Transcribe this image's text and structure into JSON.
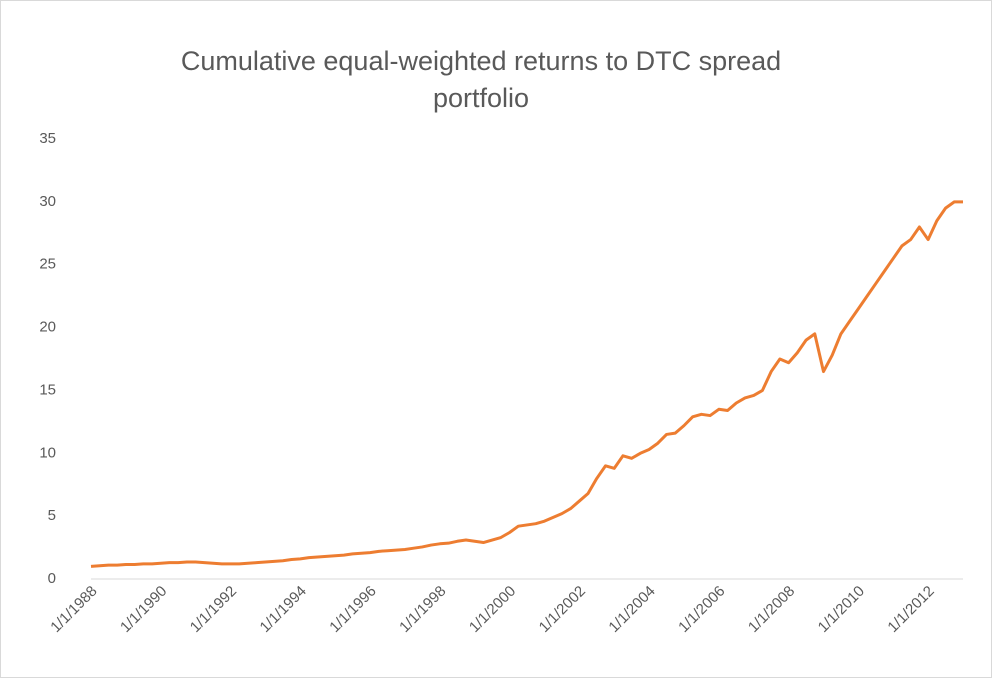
{
  "chart_data": {
    "type": "line",
    "title": "Cumulative equal-weighted returns to DTC spread portfolio",
    "x": [
      "1/1/1988",
      "4/1/1988",
      "7/1/1988",
      "10/1/1988",
      "1/1/1989",
      "4/1/1989",
      "7/1/1989",
      "10/1/1989",
      "1/1/1990",
      "4/1/1990",
      "7/1/1990",
      "10/1/1990",
      "1/1/1991",
      "4/1/1991",
      "7/1/1991",
      "10/1/1991",
      "1/1/1992",
      "4/1/1992",
      "7/1/1992",
      "10/1/1992",
      "1/1/1993",
      "4/1/1993",
      "7/1/1993",
      "10/1/1993",
      "1/1/1994",
      "4/1/1994",
      "7/1/1994",
      "10/1/1994",
      "1/1/1995",
      "4/1/1995",
      "7/1/1995",
      "10/1/1995",
      "1/1/1996",
      "4/1/1996",
      "7/1/1996",
      "10/1/1996",
      "1/1/1997",
      "4/1/1997",
      "7/1/1997",
      "10/1/1997",
      "1/1/1998",
      "4/1/1998",
      "7/1/1998",
      "10/1/1998",
      "1/1/1999",
      "4/1/1999",
      "7/1/1999",
      "10/1/1999",
      "1/1/2000",
      "4/1/2000",
      "7/1/2000",
      "10/1/2000",
      "1/1/2001",
      "4/1/2001",
      "7/1/2001",
      "10/1/2001",
      "1/1/2002",
      "4/1/2002",
      "7/1/2002",
      "10/1/2002",
      "1/1/2003",
      "4/1/2003",
      "7/1/2003",
      "10/1/2003",
      "1/1/2004",
      "4/1/2004",
      "7/1/2004",
      "10/1/2004",
      "1/1/2005",
      "4/1/2005",
      "7/1/2005",
      "10/1/2005",
      "1/1/2006",
      "4/1/2006",
      "7/1/2006",
      "10/1/2006",
      "1/1/2007",
      "4/1/2007",
      "7/1/2007",
      "10/1/2007",
      "1/1/2008",
      "4/1/2008",
      "7/1/2008",
      "10/1/2008",
      "1/1/2009",
      "4/1/2009",
      "7/1/2009",
      "10/1/2009",
      "1/1/2010",
      "4/1/2010",
      "7/1/2010",
      "10/1/2010",
      "1/1/2011",
      "4/1/2011",
      "7/1/2011",
      "10/1/2011",
      "1/1/2012",
      "4/1/2012",
      "7/1/2012",
      "10/1/2012",
      "1/1/2013"
    ],
    "series": [
      {
        "color": "#ed7d31",
        "values": [
          1.0,
          1.05,
          1.1,
          1.1,
          1.15,
          1.15,
          1.2,
          1.2,
          1.25,
          1.3,
          1.3,
          1.35,
          1.35,
          1.3,
          1.25,
          1.2,
          1.2,
          1.2,
          1.25,
          1.3,
          1.35,
          1.4,
          1.45,
          1.55,
          1.6,
          1.7,
          1.75,
          1.8,
          1.85,
          1.9,
          2.0,
          2.05,
          2.1,
          2.2,
          2.25,
          2.3,
          2.35,
          2.45,
          2.55,
          2.7,
          2.8,
          2.85,
          3.0,
          3.1,
          3.0,
          2.9,
          3.1,
          3.3,
          3.7,
          4.2,
          4.3,
          4.4,
          4.6,
          4.9,
          5.2,
          5.6,
          6.2,
          6.8,
          8.0,
          9.0,
          8.8,
          9.8,
          9.6,
          10.0,
          10.3,
          10.8,
          11.5,
          11.6,
          12.2,
          12.9,
          13.1,
          13.0,
          13.5,
          13.4,
          14.0,
          14.4,
          14.6,
          15.0,
          16.5,
          17.5,
          17.2,
          18.0,
          19.0,
          19.5,
          16.5,
          17.8,
          19.5,
          20.5,
          21.5,
          22.5,
          23.5,
          24.5,
          25.5,
          26.5,
          27.0,
          28.0,
          27.0,
          28.5,
          29.5,
          30.0,
          30.0
        ]
      }
    ],
    "xticks": [
      "1/1/1988",
      "1/1/1990",
      "1/1/1992",
      "1/1/1994",
      "1/1/1996",
      "1/1/1998",
      "1/1/2000",
      "1/1/2002",
      "1/1/2004",
      "1/1/2006",
      "1/1/2008",
      "1/1/2010",
      "1/1/2012"
    ],
    "ylim": [
      0,
      35
    ],
    "yticks": [
      0,
      5,
      10,
      15,
      20,
      25,
      30,
      35
    ],
    "grid": false
  }
}
